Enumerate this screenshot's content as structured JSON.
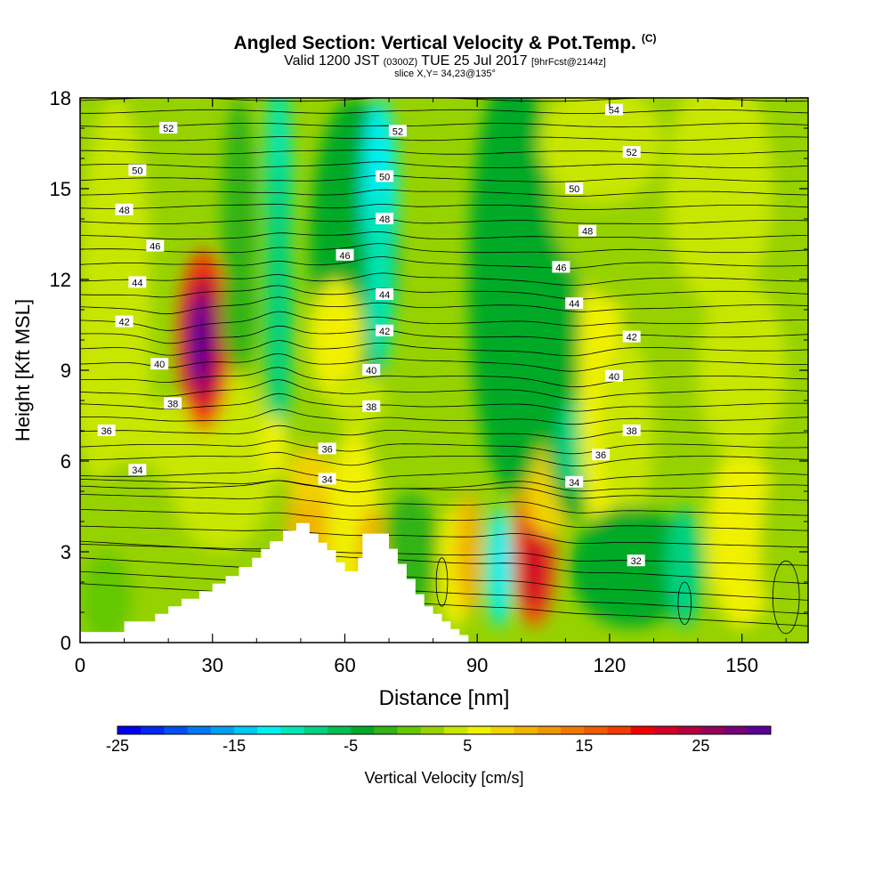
{
  "header": {
    "title": "Angled Section: Vertical Velocity & Pot.Temp.",
    "title_suffix": "(C)",
    "valid_prefix": "Valid 1200 JST",
    "valid_utc": "(0300Z)",
    "valid_date": "TUE 25 Jul 2017",
    "forecast": "[9hrFcst@2144z]",
    "slice": "slice X,Y= 34,23@135°"
  },
  "chart_data": {
    "type": "heatmap",
    "xlabel": "Distance [nm]",
    "ylabel": "Height [Kft MSL]",
    "xlim": [
      0,
      165
    ],
    "ylim": [
      0,
      18
    ],
    "x_ticks": [
      0,
      30,
      60,
      90,
      120,
      150
    ],
    "y_ticks": [
      0,
      3,
      6,
      9,
      12,
      15,
      18
    ],
    "colorbar": {
      "label": "Vertical Velocity [cm/s]",
      "range": [
        -25,
        31
      ],
      "step": 2,
      "tick_labels": [
        -25,
        -15,
        -5,
        5,
        15,
        25
      ],
      "colors": [
        "#0000f0",
        "#0028f0",
        "#0050f0",
        "#0078f0",
        "#00a0f0",
        "#00c8f0",
        "#00f0f0",
        "#00e6b4",
        "#00d282",
        "#00be50",
        "#00aa28",
        "#32b414",
        "#64c800",
        "#96d200",
        "#c8e600",
        "#f0f000",
        "#f0d200",
        "#f0b400",
        "#f09600",
        "#f07800",
        "#f05a00",
        "#f03c00",
        "#f00000",
        "#d20028",
        "#b4003c",
        "#96005a",
        "#780078",
        "#5a0096"
      ]
    },
    "theta_labels": [
      {
        "value": "52",
        "x": 20,
        "y": 17.0
      },
      {
        "value": "50",
        "x": 13,
        "y": 15.6
      },
      {
        "value": "48",
        "x": 10,
        "y": 14.3
      },
      {
        "value": "46",
        "x": 17,
        "y": 13.1
      },
      {
        "value": "44",
        "x": 13,
        "y": 11.9
      },
      {
        "value": "42",
        "x": 10,
        "y": 10.6
      },
      {
        "value": "40",
        "x": 18,
        "y": 9.2
      },
      {
        "value": "38",
        "x": 21,
        "y": 7.9
      },
      {
        "value": "36",
        "x": 6,
        "y": 7.0
      },
      {
        "value": "34",
        "x": 13,
        "y": 5.7
      },
      {
        "value": "52",
        "x": 72,
        "y": 16.9
      },
      {
        "value": "50",
        "x": 69,
        "y": 15.4
      },
      {
        "value": "48",
        "x": 69,
        "y": 14.0
      },
      {
        "value": "46",
        "x": 60,
        "y": 12.8
      },
      {
        "value": "44",
        "x": 69,
        "y": 11.5
      },
      {
        "value": "42",
        "x": 69,
        "y": 10.3
      },
      {
        "value": "40",
        "x": 66,
        "y": 9.0
      },
      {
        "value": "38",
        "x": 66,
        "y": 7.8
      },
      {
        "value": "36",
        "x": 56,
        "y": 6.4
      },
      {
        "value": "34",
        "x": 56,
        "y": 5.4
      },
      {
        "value": "54",
        "x": 121,
        "y": 17.6
      },
      {
        "value": "52",
        "x": 125,
        "y": 16.2
      },
      {
        "value": "50",
        "x": 112,
        "y": 15.0
      },
      {
        "value": "48",
        "x": 115,
        "y": 13.6
      },
      {
        "value": "46",
        "x": 109,
        "y": 12.4
      },
      {
        "value": "44",
        "x": 112,
        "y": 11.2
      },
      {
        "value": "42",
        "x": 125,
        "y": 10.1
      },
      {
        "value": "40",
        "x": 121,
        "y": 8.8
      },
      {
        "value": "38",
        "x": 125,
        "y": 7.0
      },
      {
        "value": "36",
        "x": 118,
        "y": 6.2
      },
      {
        "value": "34",
        "x": 112,
        "y": 5.3
      },
      {
        "value": "32",
        "x": 126,
        "y": 2.7
      }
    ]
  }
}
